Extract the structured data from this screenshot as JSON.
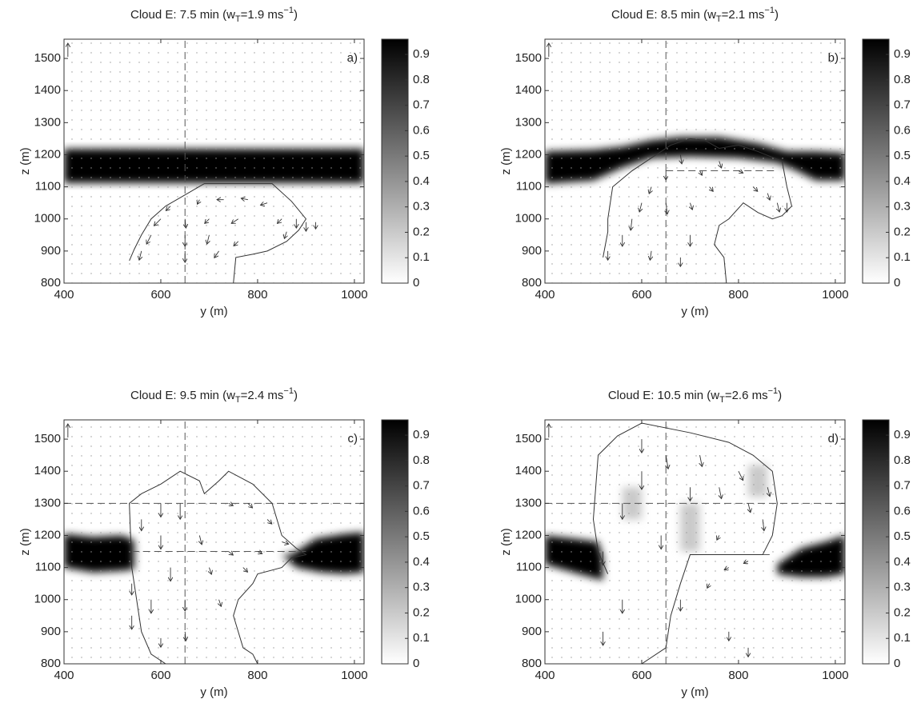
{
  "chart_data": [
    {
      "type": "quiver",
      "title": [
        "Cloud E: 7.5 min (w",
        "T",
        "=1.9 ms",
        "−1",
        ")"
      ],
      "panel_label": "a)",
      "xlabel": "y (m)",
      "ylabel": "z (m)",
      "xlim": [
        400,
        1020
      ],
      "ylim": [
        800,
        1560
      ],
      "xticks": [
        400,
        600,
        800,
        1000
      ],
      "yticks": [
        800,
        900,
        1000,
        1100,
        1200,
        1300,
        1400,
        1500
      ],
      "colorbar": {
        "lim": [
          0,
          0.96
        ],
        "ticks": [
          0,
          0.1,
          0.2,
          0.3,
          0.4,
          0.5,
          0.6,
          0.7,
          0.8,
          0.9
        ]
      },
      "field": [
        {
          "value": 0.95,
          "y": [
            400,
            1020,
            1020,
            400
          ],
          "z": [
            1112,
            1112,
            1218,
            1218
          ]
        }
      ],
      "outline": {
        "y": [
          750,
          755,
          790,
          820,
          860,
          885,
          900,
          870,
          830,
          690,
          650,
          610,
          580,
          560,
          545,
          535
        ],
        "z": [
          800,
          880,
          890,
          900,
          930,
          965,
          1000,
          1055,
          1110,
          1110,
          1075,
          1040,
          1000,
          950,
          905,
          870
        ]
      },
      "dashed": [
        {
          "y": [
            650,
            650
          ],
          "z": [
            800,
            1560
          ]
        }
      ],
      "reference_vector": [
        408,
        1505,
        0,
        3
      ],
      "vectors": [
        [
          560,
          900,
          -0.5,
          -2
        ],
        [
          580,
          950,
          -1,
          -2
        ],
        [
          600,
          1000,
          -1.5,
          -1.5
        ],
        [
          620,
          1040,
          -1,
          -1
        ],
        [
          650,
          900,
          0,
          -2.5
        ],
        [
          650,
          950,
          0,
          -2.5
        ],
        [
          650,
          1000,
          0.2,
          -2
        ],
        [
          680,
          1060,
          -0.5,
          -1
        ],
        [
          700,
          950,
          -0.5,
          -2
        ],
        [
          700,
          1000,
          -1,
          -1
        ],
        [
          730,
          1060,
          -1.5,
          0
        ],
        [
          760,
          1000,
          -1.5,
          -1
        ],
        [
          780,
          1060,
          -1.5,
          0.3
        ],
        [
          820,
          1050,
          -1.5,
          -0.5
        ],
        [
          850,
          1000,
          -1,
          -1
        ],
        [
          860,
          960,
          -0.5,
          -1.5
        ],
        [
          880,
          1000,
          0,
          -2
        ],
        [
          900,
          990,
          0,
          -2
        ],
        [
          920,
          990,
          0,
          -1.5
        ],
        [
          720,
          900,
          -1,
          -1.5
        ],
        [
          760,
          930,
          -1,
          -1
        ]
      ]
    },
    {
      "type": "quiver",
      "title": [
        "Cloud E: 8.5 min (w",
        "T",
        "=2.1 ms",
        "−1",
        ")"
      ],
      "panel_label": "b)",
      "xlabel": "y (m)",
      "ylabel": "z (m)",
      "xlim": [
        400,
        1020
      ],
      "ylim": [
        800,
        1560
      ],
      "xticks": [
        400,
        600,
        800,
        1000
      ],
      "yticks": [
        800,
        900,
        1000,
        1100,
        1200,
        1300,
        1400,
        1500
      ],
      "colorbar": {
        "lim": [
          0,
          0.96
        ],
        "ticks": [
          0,
          0.1,
          0.2,
          0.3,
          0.4,
          0.5,
          0.6,
          0.7,
          0.8,
          0.9
        ]
      },
      "field": [
        {
          "value": 0.95,
          "y": [
            400,
            500,
            560,
            620,
            680,
            760,
            840,
            900,
            960,
            1020,
            1020,
            960,
            920,
            880,
            800,
            700,
            620,
            560,
            500,
            400
          ],
          "z": [
            1210,
            1215,
            1225,
            1245,
            1255,
            1255,
            1235,
            1210,
            1210,
            1205,
            1120,
            1120,
            1150,
            1175,
            1190,
            1195,
            1190,
            1160,
            1120,
            1110
          ]
        }
      ],
      "outline": {
        "y": [
          520,
          530,
          530,
          540,
          580,
          620,
          660,
          700,
          730,
          760,
          800,
          840,
          890,
          900,
          910,
          890,
          870,
          840,
          810,
          780,
          760,
          750,
          770,
          775
        ],
        "z": [
          880,
          960,
          1000,
          1100,
          1150,
          1190,
          1230,
          1250,
          1245,
          1220,
          1230,
          1210,
          1180,
          1100,
          1040,
          1010,
          1000,
          1020,
          1050,
          1000,
          980,
          920,
          880,
          800
        ]
      },
      "dashed": [
        {
          "y": [
            650,
            650
          ],
          "z": [
            800,
            1560
          ]
        },
        {
          "y": [
            650,
            880
          ],
          "z": [
            1150,
            1150
          ]
        }
      ],
      "reference_vector": [
        408,
        1505,
        0,
        3
      ],
      "vectors": [
        [
          530,
          900,
          0,
          -2
        ],
        [
          560,
          950,
          0,
          -2.5
        ],
        [
          580,
          1000,
          -0.3,
          -2.5
        ],
        [
          600,
          1050,
          -0.5,
          -2
        ],
        [
          620,
          1100,
          -0.5,
          -1.5
        ],
        [
          650,
          1150,
          0,
          -2
        ],
        [
          650,
          1050,
          0.3,
          -2.5
        ],
        [
          680,
          1200,
          0.3,
          -2
        ],
        [
          700,
          950,
          0,
          -2.5
        ],
        [
          720,
          1150,
          0.5,
          -1
        ],
        [
          760,
          1180,
          0.5,
          -1.5
        ],
        [
          800,
          1150,
          1,
          -0.5
        ],
        [
          830,
          1100,
          1,
          -1
        ],
        [
          860,
          1080,
          0.5,
          -1.5
        ],
        [
          880,
          1050,
          0.5,
          -2
        ],
        [
          900,
          1050,
          0,
          -2
        ],
        [
          620,
          900,
          -0.3,
          -2
        ],
        [
          680,
          880,
          0,
          -2
        ],
        [
          740,
          1100,
          0.8,
          -1
        ],
        [
          700,
          1050,
          0.5,
          -1.5
        ]
      ]
    },
    {
      "type": "quiver",
      "title": [
        "Cloud E: 9.5 min (w",
        "T",
        "=2.4 ms",
        "−1",
        ")"
      ],
      "panel_label": "c)",
      "xlabel": "y (m)",
      "ylabel": "z (m)",
      "xlim": [
        400,
        1020
      ],
      "ylim": [
        800,
        1560
      ],
      "xticks": [
        400,
        600,
        800,
        1000
      ],
      "yticks": [
        800,
        900,
        1000,
        1100,
        1200,
        1300,
        1400,
        1500
      ],
      "colorbar": {
        "lim": [
          0,
          0.96
        ],
        "ticks": [
          0,
          0.1,
          0.2,
          0.3,
          0.4,
          0.5,
          0.6,
          0.7,
          0.8,
          0.9
        ]
      },
      "field": [
        {
          "value": 0.95,
          "y": [
            400,
            460,
            520,
            545,
            545,
            520,
            460,
            400
          ],
          "z": [
            1205,
            1195,
            1200,
            1185,
            1095,
            1090,
            1085,
            1100
          ]
        },
        {
          "value": 0.95,
          "y": [
            870,
            920,
            980,
            1020,
            1020,
            980,
            930,
            880,
            850
          ],
          "z": [
            1140,
            1190,
            1205,
            1210,
            1085,
            1080,
            1085,
            1100,
            1140
          ]
        }
      ],
      "outline": {
        "y": [
          610,
          580,
          560,
          550,
          540,
          535,
          560,
          600,
          640,
          680,
          690,
          720,
          740,
          790,
          830,
          850,
          880,
          900,
          870,
          850,
          800,
          790,
          760,
          750,
          760,
          770,
          790,
          800
        ],
        "z": [
          800,
          830,
          900,
          1000,
          1100,
          1300,
          1330,
          1360,
          1400,
          1370,
          1330,
          1370,
          1400,
          1360,
          1300,
          1200,
          1160,
          1140,
          1130,
          1100,
          1080,
          1050,
          1000,
          950,
          900,
          850,
          830,
          800
        ]
      },
      "dashed": [
        {
          "y": [
            650,
            650
          ],
          "z": [
            800,
            1560
          ]
        },
        {
          "y": [
            400,
            1020
          ],
          "z": [
            1300,
            1300
          ]
        },
        {
          "y": [
            540,
            900
          ],
          "z": [
            1150,
            1150
          ]
        }
      ],
      "reference_vector": [
        408,
        1505,
        0,
        3
      ],
      "vectors": [
        [
          540,
          950,
          0,
          -3
        ],
        [
          540,
          1050,
          0,
          -2.5
        ],
        [
          580,
          1000,
          0,
          -3
        ],
        [
          600,
          1200,
          0,
          -3
        ],
        [
          600,
          1300,
          0,
          -3
        ],
        [
          620,
          1100,
          0,
          -3
        ],
        [
          640,
          1300,
          0,
          -3.5
        ],
        [
          650,
          1000,
          0,
          -2.5
        ],
        [
          650,
          900,
          0.2,
          -2
        ],
        [
          680,
          1200,
          0.5,
          -2
        ],
        [
          700,
          1100,
          0.5,
          -1.5
        ],
        [
          720,
          1000,
          0.5,
          -1.5
        ],
        [
          740,
          1300,
          1,
          -0.5
        ],
        [
          780,
          1300,
          1,
          -1
        ],
        [
          820,
          1250,
          1,
          -1
        ],
        [
          850,
          1180,
          1.5,
          -0.5
        ],
        [
          800,
          1150,
          1,
          -0.5
        ],
        [
          740,
          1150,
          1,
          -0.8
        ],
        [
          770,
          1100,
          1,
          -1
        ],
        [
          600,
          880,
          0,
          -2
        ],
        [
          560,
          1250,
          0,
          -2.5
        ]
      ]
    },
    {
      "type": "quiver",
      "title": [
        "Cloud E: 10.5 min (w",
        "T",
        "=2.6 ms",
        "−1",
        ")"
      ],
      "panel_label": "d)",
      "xlabel": "y (m)",
      "ylabel": "z (m)",
      "xlim": [
        400,
        1020
      ],
      "ylim": [
        800,
        1560
      ],
      "xticks": [
        400,
        600,
        800,
        1000
      ],
      "yticks": [
        800,
        900,
        1000,
        1100,
        1200,
        1300,
        1400,
        1500
      ],
      "colorbar": {
        "lim": [
          0,
          0.96
        ],
        "ticks": [
          0,
          0.1,
          0.2,
          0.3,
          0.4,
          0.5,
          0.6,
          0.7,
          0.8,
          0.9
        ]
      },
      "field": [
        {
          "value": 0.95,
          "y": [
            400,
            460,
            510,
            520,
            520,
            470,
            400
          ],
          "z": [
            1200,
            1190,
            1180,
            1130,
            1060,
            1080,
            1110
          ]
        },
        {
          "value": 0.95,
          "y": [
            880,
            930,
            980,
            1020,
            1020,
            980,
            930,
            880
          ],
          "z": [
            1110,
            1160,
            1180,
            1200,
            1080,
            1070,
            1070,
            1080
          ]
        },
        {
          "value": 0.2,
          "y": [
            680,
            720,
            720,
            680
          ],
          "z": [
            1150,
            1150,
            1300,
            1300
          ]
        },
        {
          "value": 0.2,
          "y": [
            560,
            600,
            600,
            560
          ],
          "z": [
            1250,
            1250,
            1350,
            1350
          ]
        },
        {
          "value": 0.2,
          "y": [
            820,
            860,
            860,
            820
          ],
          "z": [
            1320,
            1320,
            1420,
            1420
          ]
        }
      ],
      "outline": {
        "y": [
          600,
          650,
          660,
          680,
          700,
          850,
          870,
          880,
          870,
          830,
          780,
          700,
          600,
          550,
          510,
          500,
          510,
          530
        ],
        "z": [
          800,
          850,
          950,
          1050,
          1140,
          1140,
          1200,
          1300,
          1400,
          1450,
          1490,
          1520,
          1550,
          1510,
          1450,
          1250,
          1150,
          1080
        ]
      },
      "dashed": [
        {
          "y": [
            650,
            650
          ],
          "z": [
            800,
            1560
          ]
        },
        {
          "y": [
            400,
            1020
          ],
          "z": [
            1300,
            1300
          ]
        },
        {
          "y": [
            780,
            870
          ],
          "z": [
            1140,
            1140
          ]
        }
      ],
      "reference_vector": [
        408,
        1505,
        0,
        3
      ],
      "vectors": [
        [
          520,
          1150,
          0,
          -3
        ],
        [
          520,
          900,
          0,
          -3
        ],
        [
          560,
          1000,
          0,
          -3
        ],
        [
          560,
          1300,
          0,
          -3.5
        ],
        [
          600,
          1400,
          0,
          -4
        ],
        [
          600,
          1500,
          0,
          -3
        ],
        [
          640,
          1200,
          0,
          -3
        ],
        [
          650,
          1450,
          0.5,
          -3
        ],
        [
          680,
          1000,
          0,
          -2.5
        ],
        [
          700,
          1350,
          0,
          -3
        ],
        [
          720,
          1450,
          0.5,
          -2.5
        ],
        [
          760,
          1350,
          0.5,
          -2.5
        ],
        [
          800,
          1400,
          1,
          -2
        ],
        [
          820,
          1300,
          0.5,
          -2
        ],
        [
          850,
          1250,
          0.3,
          -2.5
        ],
        [
          860,
          1350,
          0.5,
          -2
        ],
        [
          780,
          1100,
          -1,
          -0.5
        ],
        [
          820,
          1120,
          -1,
          -0.5
        ],
        [
          780,
          900,
          0,
          -2
        ],
        [
          820,
          850,
          0,
          -2
        ],
        [
          760,
          1200,
          -0.5,
          -1
        ],
        [
          740,
          1050,
          -0.5,
          -1
        ]
      ]
    }
  ]
}
